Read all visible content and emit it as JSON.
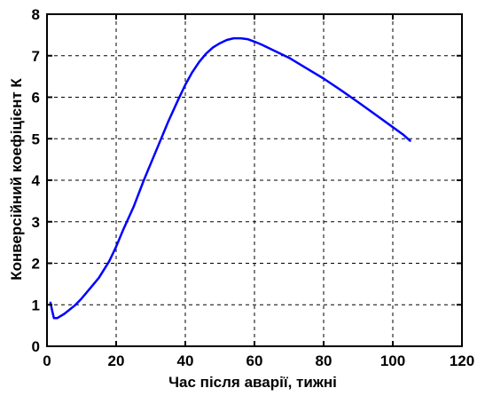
{
  "chart_data": {
    "type": "line",
    "title": "",
    "xlabel": "Час після аварії, тижні",
    "ylabel": "Конверсійний коефіцієнт К",
    "xlim": [
      0,
      120
    ],
    "ylim": [
      0,
      8
    ],
    "x_ticks": [
      0,
      20,
      40,
      60,
      80,
      100,
      120
    ],
    "y_ticks": [
      0,
      1,
      2,
      3,
      4,
      5,
      6,
      7,
      8
    ],
    "x_tick_labels": [
      "0",
      "20",
      "40",
      "60",
      "80",
      "100",
      "120"
    ],
    "y_tick_labels": [
      "0",
      "1",
      "2",
      "3",
      "4",
      "5",
      "6",
      "7",
      "8"
    ],
    "grid": true,
    "legend": "none",
    "series": [
      {
        "color": "#0000ff",
        "x": [
          1,
          1.5,
          2,
          3,
          5,
          8,
          10,
          12,
          15,
          18,
          20,
          22,
          25,
          28,
          30,
          33,
          35,
          38,
          40,
          42,
          44,
          46,
          48,
          50,
          52,
          54,
          56,
          58,
          60,
          62,
          65,
          70,
          75,
          80,
          85,
          90,
          95,
          100,
          103,
          105
        ],
        "y": [
          1.05,
          0.85,
          0.68,
          0.68,
          0.78,
          0.98,
          1.15,
          1.35,
          1.65,
          2.05,
          2.4,
          2.8,
          3.35,
          4.0,
          4.4,
          5.0,
          5.4,
          5.95,
          6.3,
          6.6,
          6.85,
          7.05,
          7.2,
          7.3,
          7.38,
          7.42,
          7.42,
          7.4,
          7.34,
          7.27,
          7.15,
          6.95,
          6.7,
          6.45,
          6.17,
          5.88,
          5.58,
          5.28,
          5.1,
          4.95
        ]
      }
    ]
  }
}
